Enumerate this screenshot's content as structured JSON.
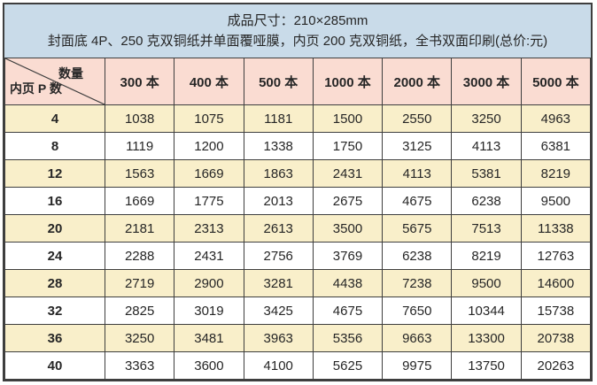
{
  "header": {
    "line1": "成品尺寸：210×285mm",
    "line2": "封面底 4P、250 克双铜纸并单面覆哑膜，内页 200 克双铜纸，全书双面印刷(总价:元)"
  },
  "table": {
    "corner": {
      "top_label": "数量",
      "bottom_label": "内页 P 数"
    },
    "columns": [
      "300 本",
      "400 本",
      "500 本",
      "1000 本",
      "2000 本",
      "3000 本",
      "5000 本"
    ],
    "rows": [
      {
        "pages": "4",
        "prices": [
          1038,
          1075,
          1181,
          1500,
          2550,
          3250,
          4963
        ]
      },
      {
        "pages": "8",
        "prices": [
          1119,
          1200,
          1338,
          1750,
          3125,
          4113,
          6381
        ]
      },
      {
        "pages": "12",
        "prices": [
          1563,
          1669,
          1863,
          2431,
          4113,
          5381,
          8219
        ]
      },
      {
        "pages": "16",
        "prices": [
          1669,
          1775,
          2013,
          2675,
          4675,
          6238,
          9500
        ]
      },
      {
        "pages": "20",
        "prices": [
          2181,
          2313,
          2613,
          3500,
          5675,
          7513,
          11338
        ]
      },
      {
        "pages": "24",
        "prices": [
          2288,
          2431,
          2756,
          3769,
          6238,
          8219,
          12763
        ]
      },
      {
        "pages": "28",
        "prices": [
          2719,
          2900,
          3281,
          4438,
          7238,
          9500,
          14600
        ]
      },
      {
        "pages": "32",
        "prices": [
          2825,
          3019,
          3425,
          4675,
          7650,
          10344,
          15738
        ]
      },
      {
        "pages": "36",
        "prices": [
          3250,
          3481,
          3963,
          5356,
          9663,
          13300,
          20738
        ]
      },
      {
        "pages": "40",
        "prices": [
          3363,
          3600,
          4100,
          5625,
          9975,
          13750,
          20263
        ]
      }
    ]
  },
  "colors": {
    "header_bg": "#c9dbe9",
    "column_header_bg": "#fadcd2",
    "row_alt_bg": "#f9efca",
    "row_bg": "#ffffff",
    "border": "#3e3e3e",
    "text": "#262626"
  }
}
